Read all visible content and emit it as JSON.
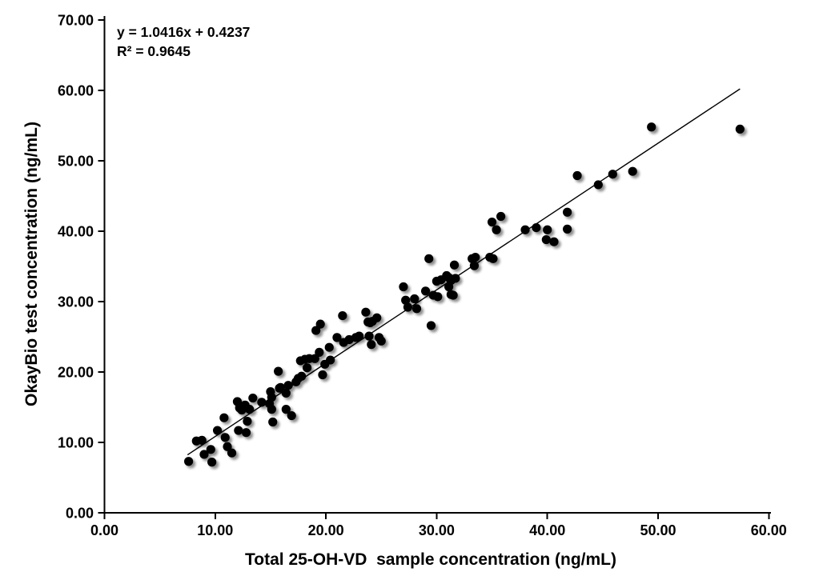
{
  "annotation": {
    "equation": "y = 1.0416x + 0.4237",
    "r_squared": "R² = 0.9645"
  },
  "chart_data": {
    "type": "scatter",
    "title": "",
    "xlabel": "Total 25-OH-VD  sample concentration (ng/mL)",
    "ylabel": "OkayBio test concentration (ng/mL)",
    "xlim": [
      0,
      60
    ],
    "ylim": [
      0,
      70
    ],
    "x_tick_values": [
      0,
      10,
      20,
      30,
      40,
      50,
      60
    ],
    "x_tick_labels": [
      "0.00",
      "10.00",
      "20.00",
      "30.00",
      "40.00",
      "50.00",
      "60.00"
    ],
    "y_tick_values": [
      0,
      10,
      20,
      30,
      40,
      50,
      60,
      70
    ],
    "y_tick_labels": [
      "0.00",
      "10.00",
      "20.00",
      "30.00",
      "40.00",
      "50.00",
      "60.00",
      "70.00"
    ],
    "grid": false,
    "legend_position": "none",
    "marker_color": "#000000",
    "trendline": {
      "slope": 1.0416,
      "intercept": 0.4237,
      "r2_value": 0.9645,
      "x_start": 7.5,
      "x_end": 57.4,
      "color": "#000000"
    },
    "points": [
      [
        7.6,
        7.3
      ],
      [
        8.3,
        10.2
      ],
      [
        8.8,
        10.3
      ],
      [
        9.0,
        8.3
      ],
      [
        9.6,
        9.0
      ],
      [
        9.7,
        7.2
      ],
      [
        10.2,
        11.7
      ],
      [
        10.8,
        13.5
      ],
      [
        10.9,
        10.7
      ],
      [
        11.1,
        9.4
      ],
      [
        11.5,
        8.5
      ],
      [
        12.0,
        15.8
      ],
      [
        12.1,
        11.7
      ],
      [
        12.2,
        14.9
      ],
      [
        12.4,
        14.6
      ],
      [
        12.7,
        15.3
      ],
      [
        12.8,
        11.4
      ],
      [
        12.9,
        13.0
      ],
      [
        13.1,
        14.7
      ],
      [
        13.4,
        16.3
      ],
      [
        14.2,
        15.7
      ],
      [
        14.9,
        15.5
      ],
      [
        15.0,
        17.2
      ],
      [
        15.1,
        16.4
      ],
      [
        15.1,
        14.7
      ],
      [
        15.2,
        12.9
      ],
      [
        15.7,
        20.1
      ],
      [
        15.8,
        17.7
      ],
      [
        15.9,
        17.8
      ],
      [
        16.4,
        17.0
      ],
      [
        16.4,
        14.7
      ],
      [
        16.6,
        18.1
      ],
      [
        16.9,
        13.8
      ],
      [
        17.3,
        18.6
      ],
      [
        17.5,
        19.1
      ],
      [
        17.7,
        21.6
      ],
      [
        17.8,
        19.4
      ],
      [
        18.1,
        21.8
      ],
      [
        18.3,
        20.6
      ],
      [
        18.5,
        21.9
      ],
      [
        19.0,
        21.9
      ],
      [
        19.1,
        25.9
      ],
      [
        19.4,
        22.8
      ],
      [
        19.5,
        26.8
      ],
      [
        19.7,
        19.6
      ],
      [
        19.9,
        21.1
      ],
      [
        20.3,
        23.5
      ],
      [
        20.4,
        21.7
      ],
      [
        21.0,
        24.9
      ],
      [
        21.5,
        28.0
      ],
      [
        21.6,
        24.2
      ],
      [
        22.1,
        24.6
      ],
      [
        22.7,
        24.9
      ],
      [
        23.0,
        25.1
      ],
      [
        23.6,
        28.5
      ],
      [
        23.8,
        27.1
      ],
      [
        23.9,
        25.1
      ],
      [
        24.0,
        27.0
      ],
      [
        24.2,
        27.2
      ],
      [
        24.1,
        23.9
      ],
      [
        24.6,
        27.7
      ],
      [
        24.8,
        24.9
      ],
      [
        25.0,
        24.4
      ],
      [
        27.0,
        32.1
      ],
      [
        27.2,
        30.2
      ],
      [
        27.4,
        29.2
      ],
      [
        28.0,
        30.4
      ],
      [
        28.2,
        29.0
      ],
      [
        29.0,
        31.5
      ],
      [
        29.3,
        36.1
      ],
      [
        29.5,
        26.6
      ],
      [
        29.7,
        30.9
      ],
      [
        30.0,
        32.9
      ],
      [
        30.1,
        30.7
      ],
      [
        30.4,
        33.1
      ],
      [
        30.9,
        33.7
      ],
      [
        31.1,
        33.4
      ],
      [
        31.1,
        32.1
      ],
      [
        31.3,
        33.0
      ],
      [
        31.3,
        31.0
      ],
      [
        31.5,
        30.9
      ],
      [
        31.6,
        35.2
      ],
      [
        31.7,
        33.3
      ],
      [
        33.2,
        36.1
      ],
      [
        33.4,
        35.1
      ],
      [
        33.5,
        36.3
      ],
      [
        34.8,
        36.3
      ],
      [
        35.1,
        36.1
      ],
      [
        35.0,
        41.3
      ],
      [
        35.4,
        40.2
      ],
      [
        35.8,
        42.1
      ],
      [
        38.0,
        40.2
      ],
      [
        39.0,
        40.5
      ],
      [
        39.9,
        38.8
      ],
      [
        40.0,
        40.2
      ],
      [
        40.6,
        38.5
      ],
      [
        41.8,
        42.7
      ],
      [
        41.8,
        40.3
      ],
      [
        42.7,
        47.9
      ],
      [
        44.6,
        46.6
      ],
      [
        45.9,
        48.1
      ],
      [
        47.7,
        48.5
      ],
      [
        49.4,
        54.8
      ],
      [
        57.4,
        54.5
      ]
    ]
  }
}
